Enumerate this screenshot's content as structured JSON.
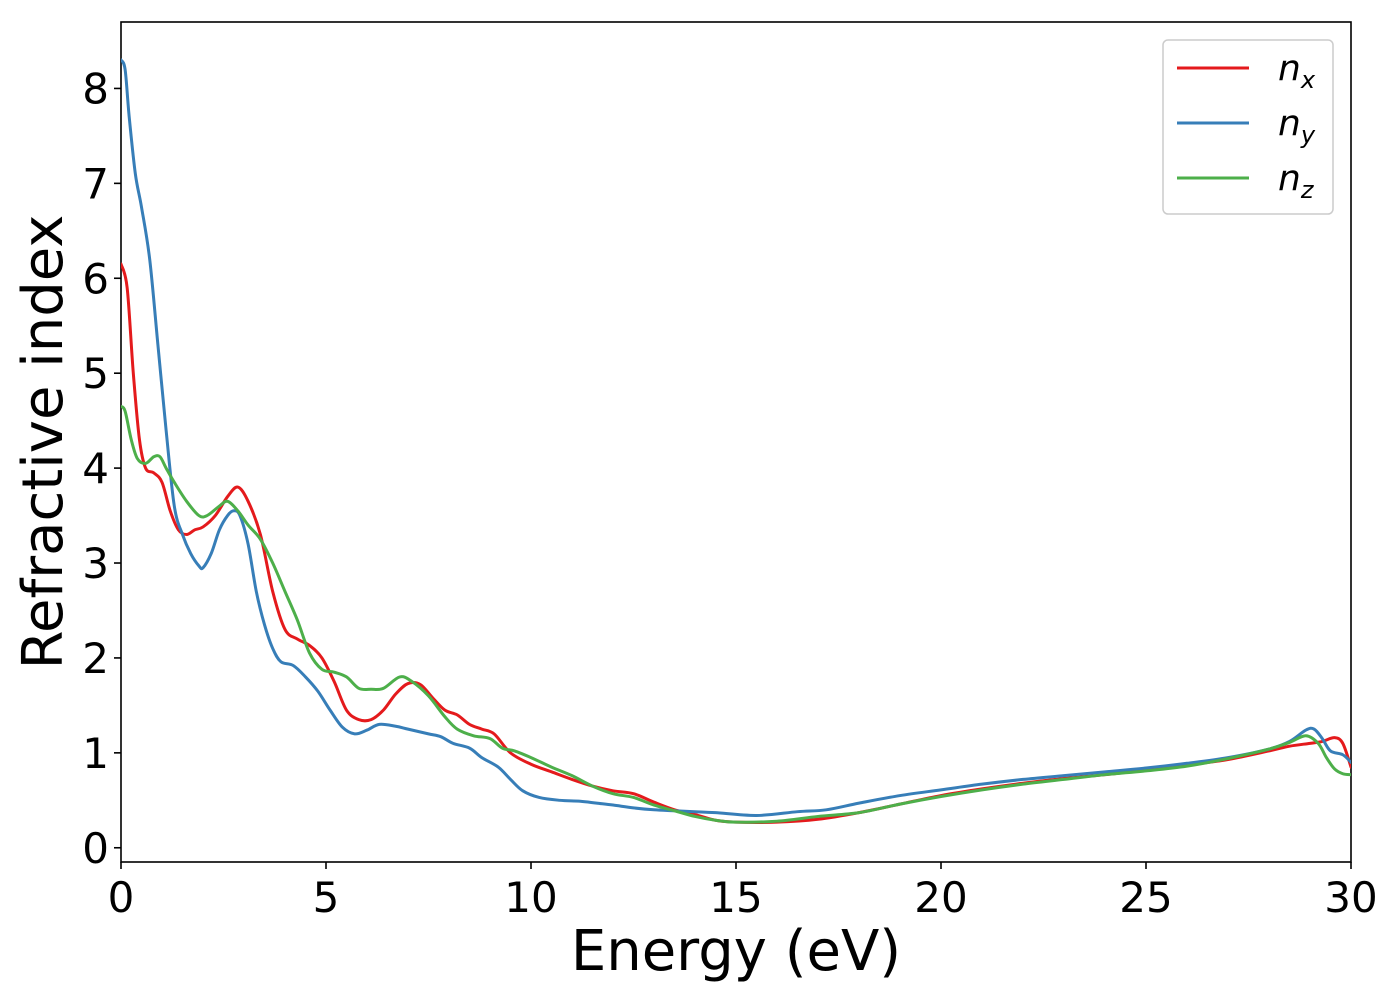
{
  "chart_data": {
    "type": "line",
    "xlabel": "Energy (eV)",
    "ylabel": "Refractive index",
    "xlim": [
      0,
      30
    ],
    "ylim": [
      -0.15,
      8.7
    ],
    "xticks": [
      0,
      5,
      10,
      15,
      20,
      25,
      30
    ],
    "yticks": [
      0,
      1,
      2,
      3,
      4,
      5,
      6,
      7,
      8
    ],
    "grid": false,
    "legend_position": "top-right",
    "series": [
      {
        "name": "n",
        "subscript": "x",
        "color": "#e41a1c",
        "points": [
          [
            0,
            6.15
          ],
          [
            0.15,
            5.9
          ],
          [
            0.3,
            5.0
          ],
          [
            0.45,
            4.3
          ],
          [
            0.6,
            4.0
          ],
          [
            0.8,
            3.95
          ],
          [
            1.0,
            3.85
          ],
          [
            1.2,
            3.55
          ],
          [
            1.4,
            3.35
          ],
          [
            1.6,
            3.3
          ],
          [
            1.8,
            3.35
          ],
          [
            2.0,
            3.38
          ],
          [
            2.3,
            3.5
          ],
          [
            2.6,
            3.7
          ],
          [
            2.85,
            3.8
          ],
          [
            3.1,
            3.65
          ],
          [
            3.4,
            3.3
          ],
          [
            3.7,
            2.7
          ],
          [
            4.0,
            2.3
          ],
          [
            4.3,
            2.2
          ],
          [
            4.6,
            2.13
          ],
          [
            4.9,
            2.0
          ],
          [
            5.2,
            1.75
          ],
          [
            5.5,
            1.45
          ],
          [
            5.8,
            1.35
          ],
          [
            6.1,
            1.35
          ],
          [
            6.4,
            1.45
          ],
          [
            6.7,
            1.62
          ],
          [
            7.0,
            1.73
          ],
          [
            7.3,
            1.72
          ],
          [
            7.6,
            1.58
          ],
          [
            7.9,
            1.45
          ],
          [
            8.2,
            1.4
          ],
          [
            8.5,
            1.3
          ],
          [
            8.8,
            1.25
          ],
          [
            9.1,
            1.2
          ],
          [
            9.5,
            1.0
          ],
          [
            10.0,
            0.88
          ],
          [
            10.5,
            0.8
          ],
          [
            11.0,
            0.72
          ],
          [
            11.5,
            0.65
          ],
          [
            12.0,
            0.6
          ],
          [
            12.5,
            0.57
          ],
          [
            13.0,
            0.48
          ],
          [
            13.5,
            0.4
          ],
          [
            14.0,
            0.35
          ],
          [
            14.5,
            0.29
          ],
          [
            15.0,
            0.27
          ],
          [
            16.0,
            0.27
          ],
          [
            17.0,
            0.3
          ],
          [
            18.0,
            0.37
          ],
          [
            19.0,
            0.46
          ],
          [
            20.0,
            0.55
          ],
          [
            21.0,
            0.62
          ],
          [
            22.0,
            0.68
          ],
          [
            23.0,
            0.73
          ],
          [
            24.0,
            0.77
          ],
          [
            25.0,
            0.82
          ],
          [
            26.0,
            0.87
          ],
          [
            27.0,
            0.93
          ],
          [
            28.0,
            1.02
          ],
          [
            28.5,
            1.07
          ],
          [
            29.0,
            1.1
          ],
          [
            29.3,
            1.12
          ],
          [
            29.6,
            1.16
          ],
          [
            29.8,
            1.1
          ],
          [
            30.0,
            0.85
          ]
        ]
      },
      {
        "name": "n",
        "subscript": "y",
        "color": "#377eb8",
        "points": [
          [
            0,
            8.3
          ],
          [
            0.1,
            8.2
          ],
          [
            0.2,
            7.7
          ],
          [
            0.35,
            7.1
          ],
          [
            0.5,
            6.75
          ],
          [
            0.7,
            6.2
          ],
          [
            0.9,
            5.3
          ],
          [
            1.1,
            4.4
          ],
          [
            1.3,
            3.6
          ],
          [
            1.5,
            3.3
          ],
          [
            1.7,
            3.1
          ],
          [
            1.9,
            2.97
          ],
          [
            2.0,
            2.95
          ],
          [
            2.2,
            3.1
          ],
          [
            2.4,
            3.35
          ],
          [
            2.6,
            3.5
          ],
          [
            2.75,
            3.55
          ],
          [
            2.9,
            3.5
          ],
          [
            3.1,
            3.2
          ],
          [
            3.3,
            2.7
          ],
          [
            3.5,
            2.35
          ],
          [
            3.7,
            2.1
          ],
          [
            3.9,
            1.96
          ],
          [
            4.2,
            1.92
          ],
          [
            4.5,
            1.8
          ],
          [
            4.8,
            1.65
          ],
          [
            5.1,
            1.45
          ],
          [
            5.4,
            1.27
          ],
          [
            5.7,
            1.2
          ],
          [
            6.0,
            1.24
          ],
          [
            6.3,
            1.3
          ],
          [
            6.7,
            1.28
          ],
          [
            7.0,
            1.25
          ],
          [
            7.5,
            1.2
          ],
          [
            7.8,
            1.17
          ],
          [
            8.1,
            1.1
          ],
          [
            8.5,
            1.05
          ],
          [
            8.8,
            0.95
          ],
          [
            9.2,
            0.85
          ],
          [
            9.5,
            0.72
          ],
          [
            9.8,
            0.6
          ],
          [
            10.2,
            0.53
          ],
          [
            10.7,
            0.5
          ],
          [
            11.2,
            0.49
          ],
          [
            11.6,
            0.47
          ],
          [
            12.0,
            0.45
          ],
          [
            12.5,
            0.42
          ],
          [
            13.0,
            0.4
          ],
          [
            13.5,
            0.39
          ],
          [
            14.0,
            0.38
          ],
          [
            14.5,
            0.37
          ],
          [
            15.5,
            0.34
          ],
          [
            16.5,
            0.38
          ],
          [
            17.2,
            0.4
          ],
          [
            18.0,
            0.47
          ],
          [
            19.0,
            0.55
          ],
          [
            20.0,
            0.61
          ],
          [
            21.0,
            0.67
          ],
          [
            22.0,
            0.72
          ],
          [
            23.0,
            0.76
          ],
          [
            24.0,
            0.8
          ],
          [
            25.0,
            0.84
          ],
          [
            26.0,
            0.89
          ],
          [
            27.0,
            0.95
          ],
          [
            28.0,
            1.04
          ],
          [
            28.5,
            1.12
          ],
          [
            28.9,
            1.24
          ],
          [
            29.1,
            1.25
          ],
          [
            29.3,
            1.15
          ],
          [
            29.5,
            1.02
          ],
          [
            29.8,
            0.98
          ],
          [
            30.0,
            0.9
          ]
        ]
      },
      {
        "name": "n",
        "subscript": "z",
        "color": "#4daf4a",
        "points": [
          [
            0,
            4.65
          ],
          [
            0.1,
            4.6
          ],
          [
            0.25,
            4.3
          ],
          [
            0.4,
            4.1
          ],
          [
            0.6,
            4.05
          ],
          [
            0.8,
            4.12
          ],
          [
            0.95,
            4.12
          ],
          [
            1.1,
            4.0
          ],
          [
            1.3,
            3.85
          ],
          [
            1.6,
            3.65
          ],
          [
            1.9,
            3.5
          ],
          [
            2.1,
            3.5
          ],
          [
            2.4,
            3.6
          ],
          [
            2.6,
            3.65
          ],
          [
            2.85,
            3.55
          ],
          [
            3.1,
            3.4
          ],
          [
            3.4,
            3.25
          ],
          [
            3.7,
            3.0
          ],
          [
            4.0,
            2.7
          ],
          [
            4.3,
            2.4
          ],
          [
            4.6,
            2.05
          ],
          [
            4.9,
            1.88
          ],
          [
            5.2,
            1.85
          ],
          [
            5.5,
            1.8
          ],
          [
            5.8,
            1.68
          ],
          [
            6.1,
            1.67
          ],
          [
            6.4,
            1.68
          ],
          [
            6.8,
            1.8
          ],
          [
            7.1,
            1.75
          ],
          [
            7.5,
            1.6
          ],
          [
            7.9,
            1.38
          ],
          [
            8.2,
            1.25
          ],
          [
            8.6,
            1.18
          ],
          [
            9.0,
            1.15
          ],
          [
            9.3,
            1.05
          ],
          [
            9.6,
            1.02
          ],
          [
            10.0,
            0.95
          ],
          [
            10.5,
            0.85
          ],
          [
            11.0,
            0.76
          ],
          [
            11.5,
            0.65
          ],
          [
            12.0,
            0.57
          ],
          [
            12.5,
            0.53
          ],
          [
            13.0,
            0.45
          ],
          [
            13.5,
            0.39
          ],
          [
            14.0,
            0.33
          ],
          [
            14.5,
            0.29
          ],
          [
            15.0,
            0.27
          ],
          [
            16.0,
            0.28
          ],
          [
            17.0,
            0.33
          ],
          [
            18.0,
            0.37
          ],
          [
            19.0,
            0.46
          ],
          [
            20.0,
            0.54
          ],
          [
            21.0,
            0.61
          ],
          [
            22.0,
            0.67
          ],
          [
            23.0,
            0.72
          ],
          [
            24.0,
            0.77
          ],
          [
            25.0,
            0.81
          ],
          [
            26.0,
            0.86
          ],
          [
            27.0,
            0.94
          ],
          [
            28.0,
            1.04
          ],
          [
            28.5,
            1.11
          ],
          [
            28.9,
            1.18
          ],
          [
            29.2,
            1.1
          ],
          [
            29.4,
            0.95
          ],
          [
            29.6,
            0.83
          ],
          [
            29.8,
            0.78
          ],
          [
            30.0,
            0.77
          ]
        ]
      }
    ]
  }
}
